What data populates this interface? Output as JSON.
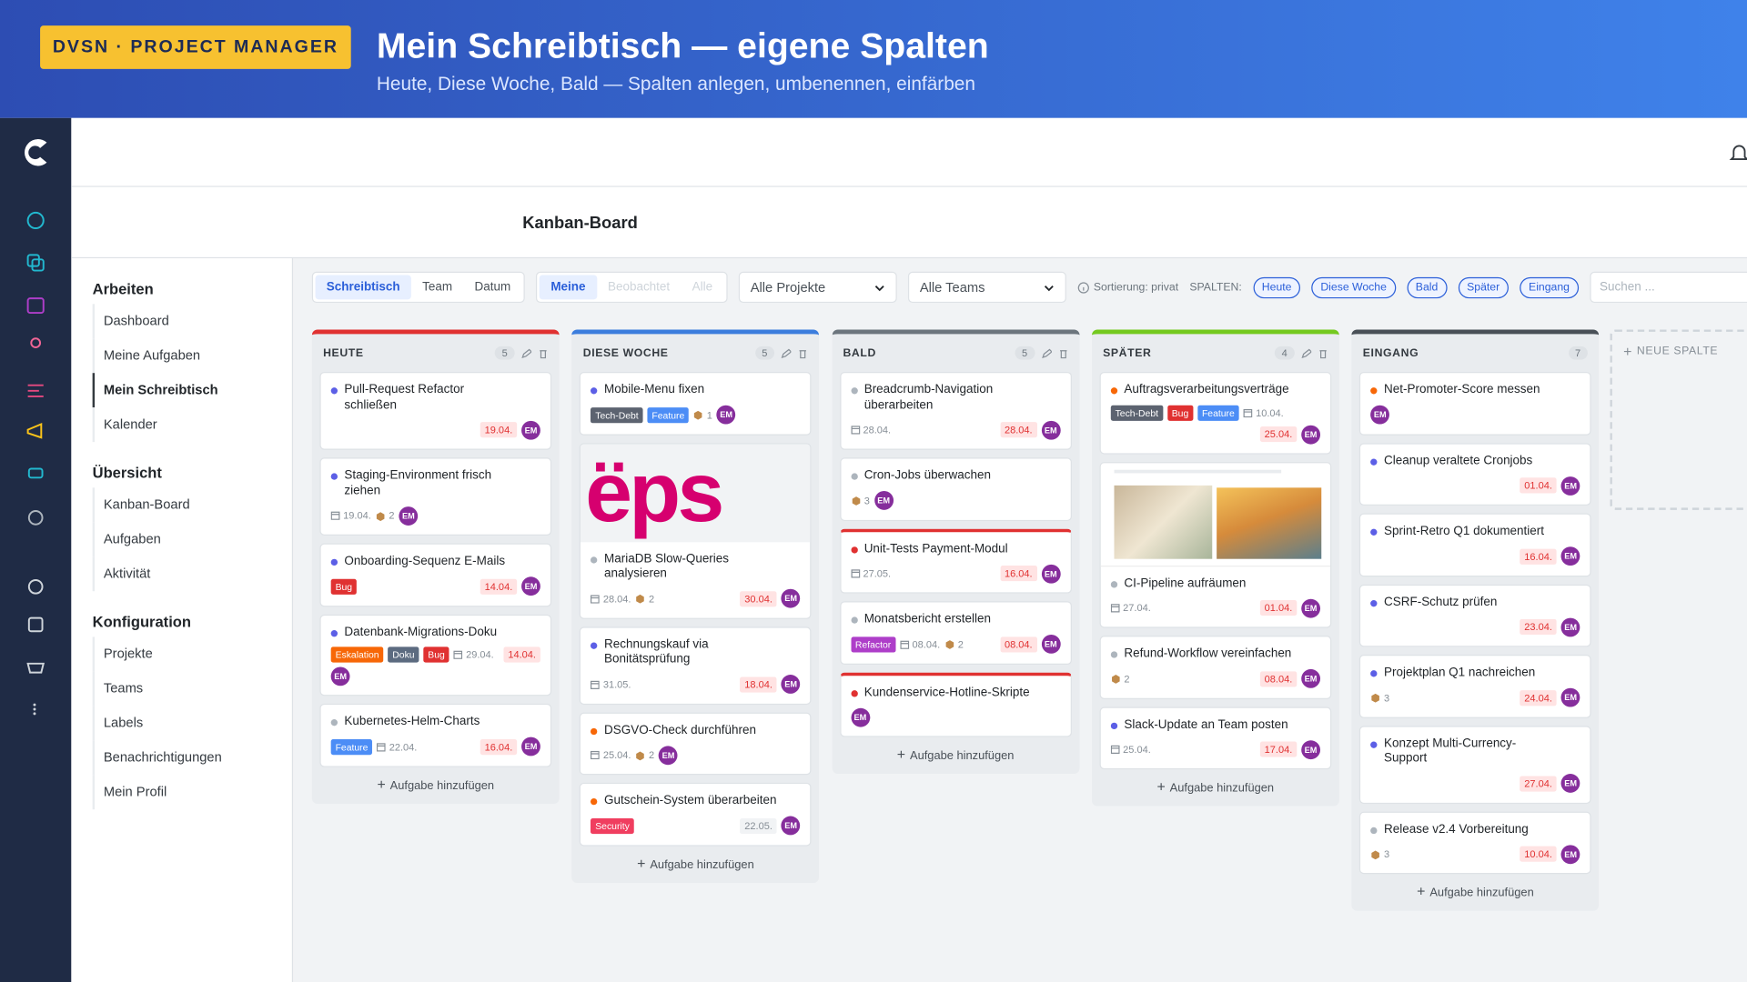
{
  "banner": {
    "badge": "DVSN · PROJECT MANAGER",
    "title": "Mein Schreibtisch — eigene Spalten",
    "subtitle": "Heute, Diese Woche, Bald — Spalten anlegen, umbenennen, einfärben"
  },
  "page_title": "Kanban-Board",
  "nav": [
    {
      "heading": "Arbeiten",
      "items": [
        "Dashboard",
        "Meine Aufgaben",
        "Mein Schreibtisch",
        "Kalender"
      ],
      "active": 2
    },
    {
      "heading": "Übersicht",
      "items": [
        "Kanban-Board",
        "Aufgaben",
        "Aktivität"
      ]
    },
    {
      "heading": "Konfiguration",
      "items": [
        "Projekte",
        "Teams",
        "Labels",
        "Benachrichtigungen",
        "Mein Profil"
      ]
    }
  ],
  "toolbar": {
    "view_tabs": [
      "Schreibtisch",
      "Team",
      "Datum"
    ],
    "scope_tabs": [
      "Meine",
      "Beobachtet",
      "Alle"
    ],
    "project_select": "Alle Projekte",
    "team_select": "Alle Teams",
    "sort_info": "Sortierung: privat",
    "columns_label": "SPALTEN:",
    "column_chips": [
      "Heute",
      "Diese Woche",
      "Bald",
      "Später",
      "Eingang"
    ],
    "search_placeholder": "Suchen ..."
  },
  "add_task_label": "Aufgabe hinzufügen",
  "new_column_label": "NEUE SPALTE",
  "columns": [
    {
      "title": "HEUTE",
      "count": 5,
      "color": "#e03131",
      "cards": [
        {
          "title": "Pull-Request Refactor schließen",
          "dot": "#5c5fe6",
          "due": "19.04.",
          "assignee": "EM"
        },
        {
          "title": "Staging-Environment frisch ziehen",
          "dot": "#5c5fe6",
          "start": "19.04.",
          "attachments": 2,
          "assignee": "EM"
        },
        {
          "title": "Onboarding-Sequenz E-Mails",
          "dot": "#5c5fe6",
          "labels": [
            {
              "text": "Bug",
              "color": "#e03131"
            }
          ],
          "due": "14.04.",
          "assignee": "EM"
        },
        {
          "title": "Datenbank-Migrations-Doku",
          "dot": "#5c5fe6",
          "labels": [
            {
              "text": "Eskalation",
              "color": "#f76707"
            },
            {
              "text": "Doku",
              "color": "#5c6b80"
            },
            {
              "text": "Bug",
              "color": "#e03131"
            }
          ],
          "start": "29.04.",
          "due": "14.04.",
          "assignee": "EM"
        },
        {
          "title": "Kubernetes-Helm-Charts",
          "dot": "#adb5bd",
          "labels": [
            {
              "text": "Feature",
              "color": "#4c8df6"
            }
          ],
          "start": "22.04.",
          "due": "16.04.",
          "assignee": "EM"
        }
      ]
    },
    {
      "title": "DIESE WOCHE",
      "count": 5,
      "color": "#3b7ddd",
      "cards": [
        {
          "title": "Mobile-Menu fixen",
          "dot": "#5c5fe6",
          "labels": [
            {
              "text": "Tech-Debt",
              "color": "#5c6370"
            },
            {
              "text": "Feature",
              "color": "#4c8df6"
            }
          ],
          "attachments": 1,
          "assignee": "EM"
        },
        {
          "title": "MariaDB Slow-Queries analysieren",
          "dot": "#adb5bd",
          "cover_text": "ëps",
          "start": "28.04.",
          "due": "30.04.",
          "attachments": 2,
          "assignee": "EM"
        },
        {
          "title": "Rechnungskauf via Bonitätsprüfung",
          "dot": "#5c5fe6",
          "start": "31.05.",
          "due": "18.04.",
          "assignee": "EM"
        },
        {
          "title": "DSGVO-Check durchführen",
          "dot": "#f76707",
          "start": "25.04.",
          "attachments": 2,
          "assignee": "EM"
        },
        {
          "title": "Gutschein-System überarbeiten",
          "dot": "#f76707",
          "labels": [
            {
              "text": "Security",
              "color": "#f03e5f"
            }
          ],
          "due": "22.05.",
          "due_style": "plain",
          "assignee": "EM"
        }
      ]
    },
    {
      "title": "BALD",
      "count": 5,
      "color": "#6c757d",
      "cards": [
        {
          "title": "Breadcrumb-Navigation überarbeiten",
          "dot": "#adb5bd",
          "start": "28.04.",
          "due": "28.04.",
          "assignee": "EM"
        },
        {
          "title": "Cron-Jobs überwachen",
          "dot": "#adb5bd",
          "attachments": 3,
          "assignee": "EM"
        },
        {
          "title": "Unit-Tests Payment-Modul",
          "dot": "#e03131",
          "accent": "#e03131",
          "start": "27.05.",
          "due": "16.04.",
          "assignee": "EM"
        },
        {
          "title": "Monatsbericht erstellen",
          "dot": "#adb5bd",
          "labels": [
            {
              "text": "Refactor",
              "color": "#ae3ec9"
            }
          ],
          "start": "08.04.",
          "due": "08.04.",
          "attachments": 2,
          "assignee": "EM"
        },
        {
          "title": "Kundenservice-Hotline-Skripte",
          "dot": "#e03131",
          "accent": "#e03131",
          "assignee": "EM"
        }
      ]
    },
    {
      "title": "SPÄTER",
      "count": 4,
      "color": "#74c91f",
      "cards": [
        {
          "title": "Auftragsverarbeitungsverträge",
          "dot": "#f76707",
          "labels": [
            {
              "text": "Tech-Debt",
              "color": "#5c6370"
            },
            {
              "text": "Bug",
              "color": "#e03131"
            },
            {
              "text": "Feature",
              "color": "#4c8df6"
            }
          ],
          "start": "10.04.",
          "due": "25.04.",
          "assignee": "EM"
        },
        {
          "title": "CI-Pipeline aufräumen",
          "dot": "#adb5bd",
          "cover": "photo",
          "start": "27.04.",
          "due": "01.04.",
          "assignee": "EM"
        },
        {
          "title": "Refund-Workflow vereinfachen",
          "dot": "#adb5bd",
          "due": "08.04.",
          "attachments": 2,
          "assignee": "EM"
        },
        {
          "title": "Slack-Update an Team posten",
          "dot": "#5c5fe6",
          "start": "25.04.",
          "due": "17.04.",
          "assignee": "EM"
        }
      ]
    },
    {
      "title": "EINGANG",
      "count": 7,
      "color": "#495057",
      "cards": [
        {
          "title": "Net-Promoter-Score messen",
          "dot": "#f76707",
          "assignee": "EM"
        },
        {
          "title": "Cleanup veraltete Cronjobs",
          "dot": "#5c5fe6",
          "due": "01.04.",
          "assignee": "EM"
        },
        {
          "title": "Sprint-Retro Q1 dokumentiert",
          "dot": "#5c5fe6",
          "due": "16.04.",
          "assignee": "EM"
        },
        {
          "title": "CSRF-Schutz prüfen",
          "dot": "#5c5fe6",
          "due": "23.04.",
          "assignee": "EM"
        },
        {
          "title": "Projektplan Q1 nachreichen",
          "dot": "#5c5fe6",
          "due": "24.04.",
          "attachments": 3,
          "assignee": "EM"
        },
        {
          "title": "Konzept Multi-Currency-Support",
          "dot": "#5c5fe6",
          "due": "27.04.",
          "assignee": "EM"
        },
        {
          "title": "Release v2.4 Vorbereitung",
          "dot": "#adb5bd",
          "due": "10.04.",
          "attachments": 3,
          "assignee": "EM"
        }
      ]
    }
  ]
}
